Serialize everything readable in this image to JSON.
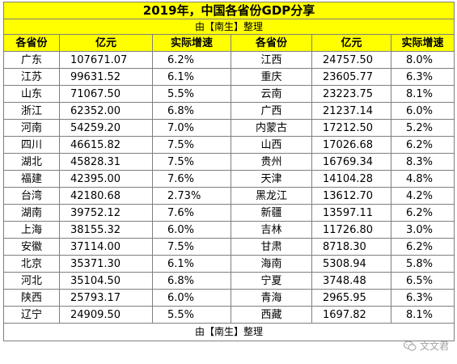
{
  "title": "2019年，中国各省份GDP分享",
  "subtitle": "由【南生】整理",
  "headers": [
    "各省份",
    "亿元",
    "实际增速",
    "各省份",
    "亿元",
    "实际增速"
  ],
  "rows": [
    [
      "广东",
      "107671.07",
      "6.2%",
      "江西",
      "24757.50",
      "8.0%"
    ],
    [
      "江苏",
      "99631.52",
      "6.1%",
      "重庆",
      "23605.77",
      "6.3%"
    ],
    [
      "山东",
      "71067.50",
      "5.5%",
      "云南",
      "23223.75",
      "8.1%"
    ],
    [
      "浙江",
      "62352.00",
      "6.8%",
      "广西",
      "21237.14",
      "6.0%"
    ],
    [
      "河南",
      "54259.20",
      "7.0%",
      "内蒙古",
      "17212.50",
      "5.2%"
    ],
    [
      "四川",
      "46615.82",
      "7.5%",
      "山西",
      "17026.68",
      "6.2%"
    ],
    [
      "湖北",
      "45828.31",
      "7.5%",
      "贵州",
      "16769.34",
      "8.3%"
    ],
    [
      "福建",
      "42395.00",
      "7.6%",
      "天津",
      "14104.28",
      "4.8%"
    ],
    [
      "台湾",
      "42180.68",
      "2.73%",
      "黑龙江",
      "13612.70",
      "4.2%"
    ],
    [
      "湖南",
      "39752.12",
      "7.6%",
      "新疆",
      "13597.11",
      "6.2%"
    ],
    [
      "上海",
      "38155.32",
      "6.0%",
      "吉林",
      "11726.80",
      "3.0%"
    ],
    [
      "安徽",
      "37114.00",
      "7.5%",
      "甘肃",
      "8718.30",
      "6.2%"
    ],
    [
      "北京",
      "35371.30",
      "6.1%",
      "海南",
      "5308.94",
      "5.8%"
    ],
    [
      "河北",
      "35104.50",
      "6.8%",
      "宁夏",
      "3748.48",
      "6.5%"
    ],
    [
      "陕西",
      "25793.17",
      "6.0%",
      "青海",
      "2965.95",
      "6.3%"
    ],
    [
      "辽宁",
      "24909.50",
      "5.5%",
      "西藏",
      "1697.82",
      "8.1%"
    ]
  ],
  "footer": "由【南生】整理",
  "watermark": "文文君",
  "watermark_icon": "wechat-icon",
  "colors": {
    "header_bg": "#ffff00",
    "border": "#7f7f7f"
  }
}
